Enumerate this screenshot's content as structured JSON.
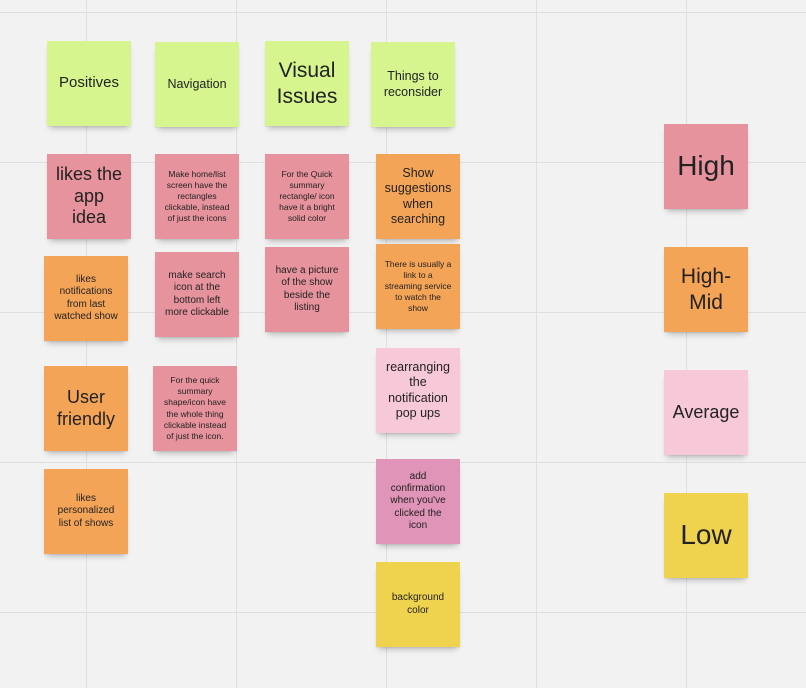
{
  "headers": {
    "positives": "Positives",
    "navigation": "Navigation",
    "visual_issues": "Visual Issues",
    "things_to_reconsider": "Things to reconsider"
  },
  "positives": {
    "n1": "likes the app idea",
    "n2": "likes notifications from last watched show",
    "n3": "User friendly",
    "n4": "likes personalized list of shows"
  },
  "navigation": {
    "n1": "Make home/list screen have the rectangles clickable, instead of just the icons",
    "n2": "make search icon at the bottom left more clickable",
    "n3": "For the quick summary shape/icon have the whole thing clickable instead of just the icon."
  },
  "visual_issues": {
    "n1": "For the Quick summary rectangle/ icon have it a bright solid color",
    "n2": "have a picture of the show beside the listing"
  },
  "reconsider": {
    "n1": "Show suggestions when searching",
    "n2": "There is usually a link to a streaming service to watch the show",
    "n3": "rearranging the notification pop ups",
    "n4": "add confirmation when you've clicked the icon",
    "n5": "background color"
  },
  "legend": {
    "high": "High",
    "high_mid": "High-Mid",
    "average": "Average",
    "low": "Low"
  },
  "colors": {
    "green": "#d6f58e",
    "high_red": "#e7939d",
    "high_mid_orange": "#f4a457",
    "average_pink": "#f7c8d8",
    "magenta": "#e094b7",
    "low_yellow": "#efd34f"
  }
}
